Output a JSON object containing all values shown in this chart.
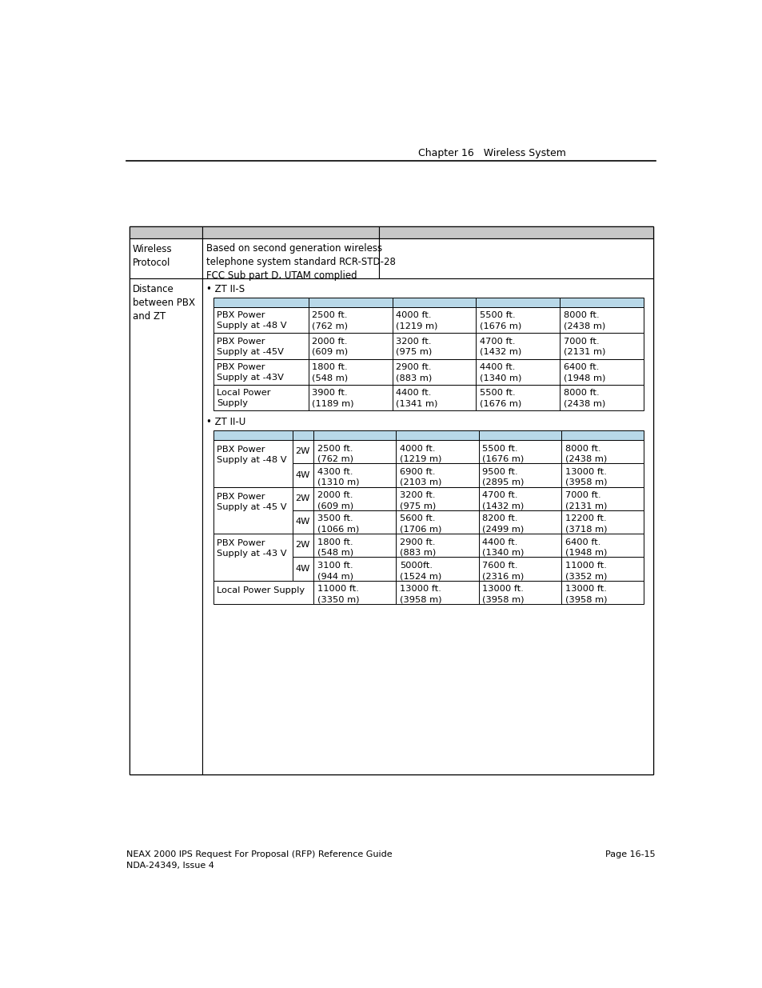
{
  "header_text": "Chapter 16   Wireless System",
  "footer_left": "NEAX 2000 IPS Request For Proposal (RFP) Reference Guide\nNDA-24349, Issue 4",
  "footer_right": "Page 16-15",
  "header_color": "#c8c8c8",
  "subheader_color": "#b8d8e8",
  "bg_color": "#ffffff",
  "zt_iis_label": "• ZT II-S",
  "zt_iiu_label": "• ZT II-U",
  "zt_iis_rows": [
    [
      "PBX Power\nSupply at -48 V",
      "2500 ft.\n(762 m)",
      "4000 ft.\n(1219 m)",
      "5500 ft.\n(1676 m)",
      "8000 ft.\n(2438 m)"
    ],
    [
      "PBX Power\nSupply at -45V",
      "2000 ft.\n(609 m)",
      "3200 ft.\n(975 m)",
      "4700 ft.\n(1432 m)",
      "7000 ft.\n(2131 m)"
    ],
    [
      "PBX Power\nSupply at -43V",
      "1800 ft.\n(548 m)",
      "2900 ft.\n(883 m)",
      "4400 ft.\n(1340 m)",
      "6400 ft.\n(1948 m)"
    ],
    [
      "Local Power\nSupply",
      "3900 ft.\n(1189 m)",
      "4400 ft.\n(1341 m)",
      "5500 ft.\n(1676 m)",
      "8000 ft.\n(2438 m)"
    ]
  ],
  "zt_iiu_rows": [
    [
      "PBX Power\nSupply at -48 V",
      "2W",
      "2500 ft.\n(762 m)",
      "4000 ft.\n(1219 m)",
      "5500 ft.\n(1676 m)",
      "8000 ft.\n(2438 m)"
    ],
    [
      "",
      "4W",
      "4300 ft.\n(1310 m)",
      "6900 ft.\n(2103 m)",
      "9500 ft.\n(2895 m)",
      "13000 ft.\n(3958 m)"
    ],
    [
      "PBX Power\nSupply at -45 V",
      "2W",
      "2000 ft.\n(609 m)",
      "3200 ft.\n(975 m)",
      "4700 ft.\n(1432 m)",
      "7000 ft.\n(2131 m)"
    ],
    [
      "",
      "4W",
      "3500 ft.\n(1066 m)",
      "5600 ft.\n(1706 m)",
      "8200 ft.\n(2499 m)",
      "12200 ft.\n(3718 m)"
    ],
    [
      "PBX Power\nSupply at -43 V",
      "2W",
      "1800 ft.\n(548 m)",
      "2900 ft.\n(883 m)",
      "4400 ft.\n(1340 m)",
      "6400 ft.\n(1948 m)"
    ],
    [
      "",
      "4W",
      "3100 ft.\n(944 m)",
      "5000ft.\n(1524 m)",
      "7600 ft.\n(2316 m)",
      "11000 ft.\n(3352 m)"
    ],
    [
      "Local Power Supply",
      "",
      "11000 ft.\n(3350 m)",
      "13000 ft.\n(3958 m)",
      "13000 ft.\n(3958 m)",
      "13000 ft.\n(3958 m)"
    ]
  ]
}
